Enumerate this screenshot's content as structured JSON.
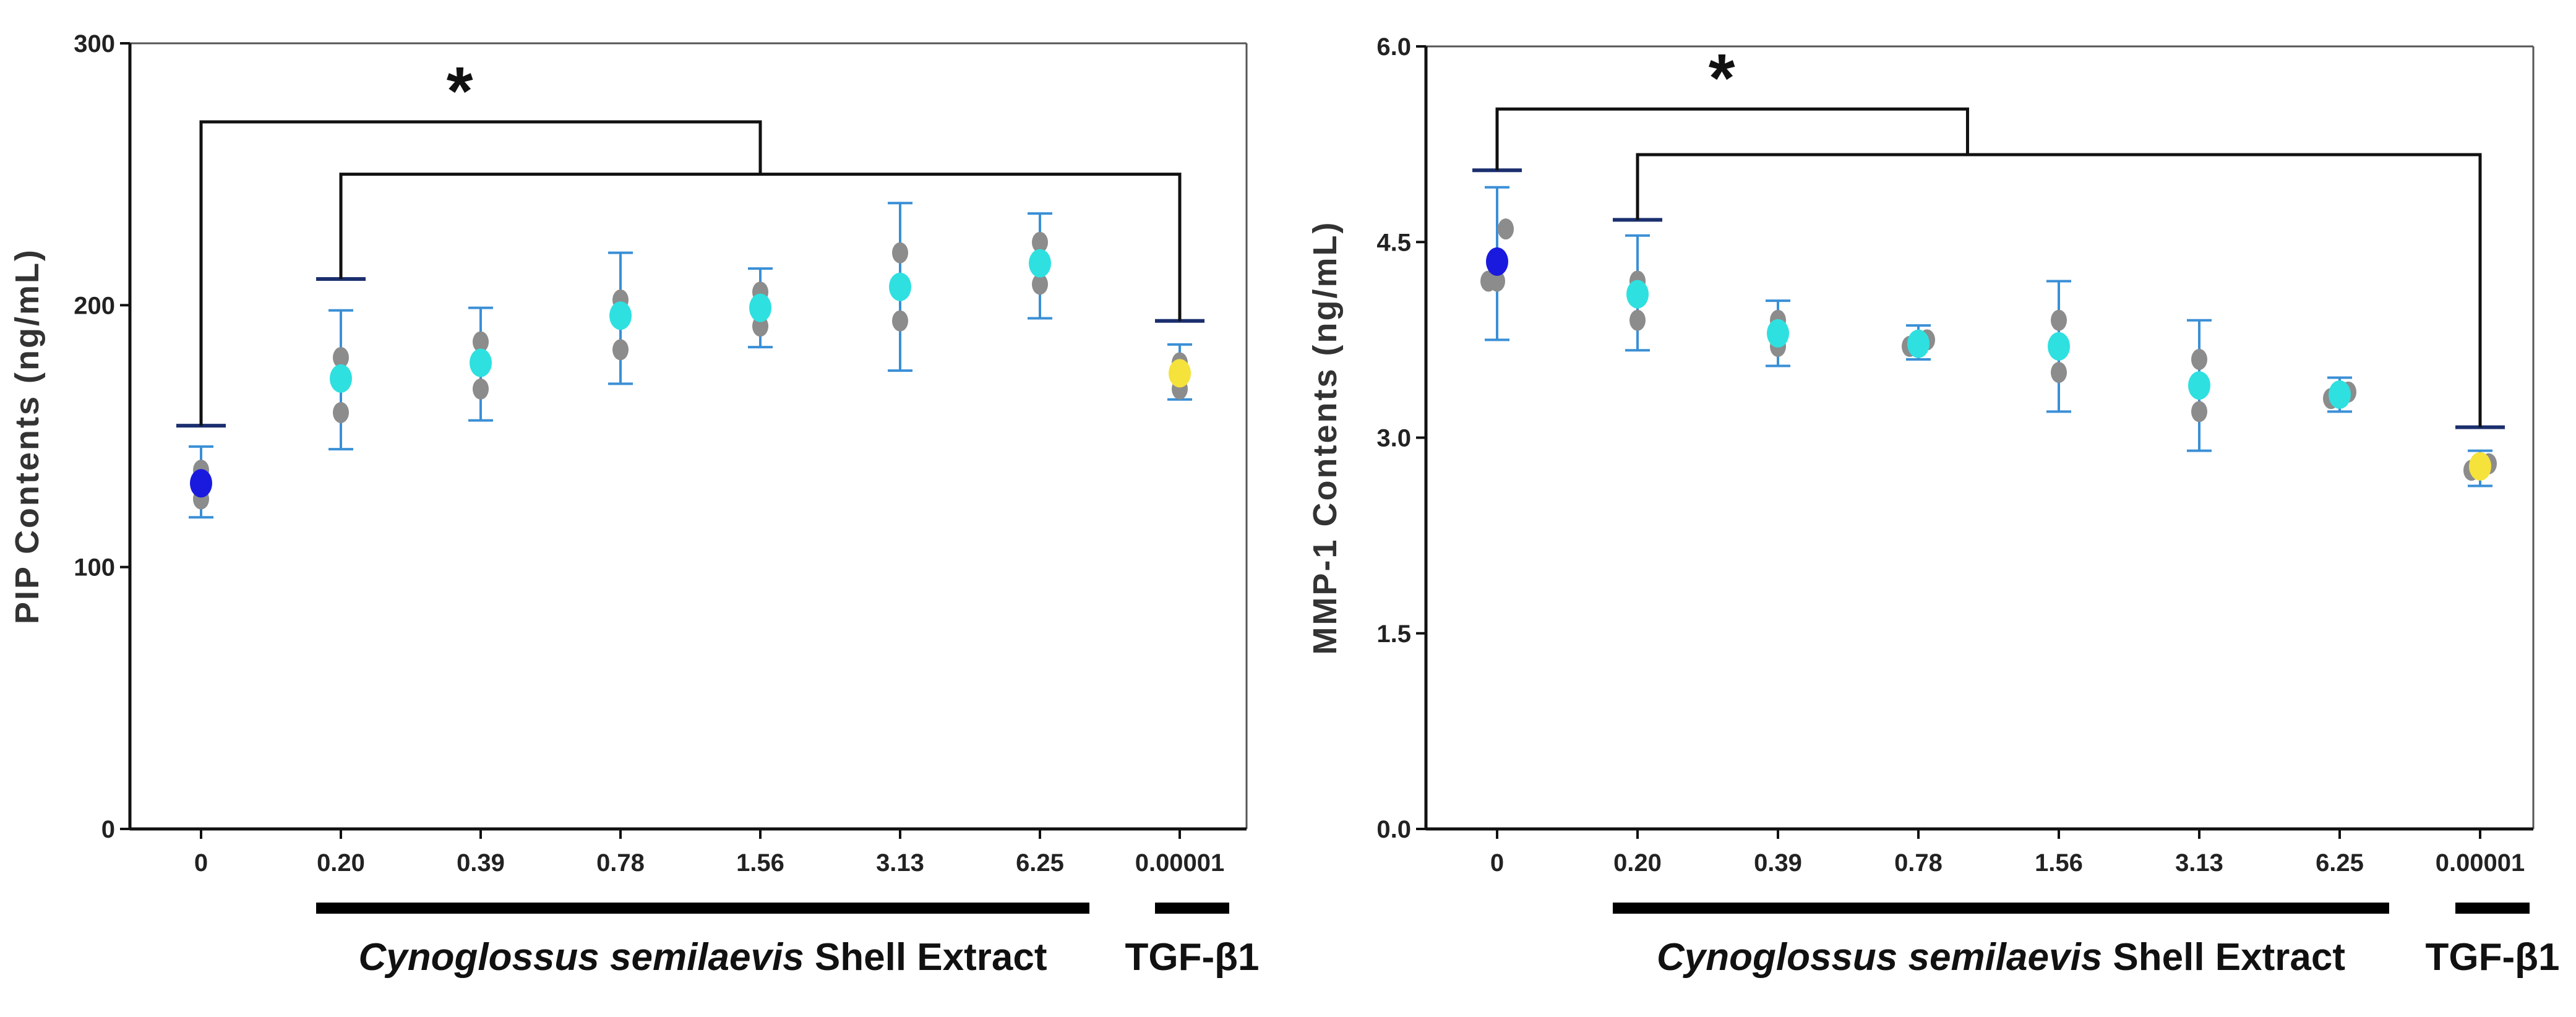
{
  "chart_data": [
    {
      "type": "scatter",
      "ylabel": "PIP Contents (ng/mL)",
      "ylim": [
        0,
        300
      ],
      "yticks": [
        "0",
        "100",
        "200",
        "300"
      ],
      "categories": [
        "0",
        "0.20",
        "0.39",
        "0.78",
        "1.56",
        "3.13",
        "6.25",
        "0.00001"
      ],
      "groups": [
        {
          "label_italic": "Cynoglossus semilaevis",
          "label_rest": " Shell Extract",
          "from": 1,
          "to": 6
        },
        {
          "label_italic": "",
          "label_rest": "TGF-β1",
          "from": 7,
          "to": 7
        }
      ],
      "means": [
        132,
        172,
        178,
        196,
        199,
        207,
        216,
        174
      ],
      "err_low": [
        119,
        145,
        156,
        170,
        184,
        175,
        195,
        164
      ],
      "err_high": [
        146,
        198,
        199,
        220,
        214,
        239,
        235,
        185
      ],
      "replicates": [
        [
          126,
          131,
          137
        ],
        [
          159,
          172,
          180
        ],
        [
          168,
          178,
          186
        ],
        [
          183,
          196,
          202
        ],
        [
          192,
          199,
          205
        ],
        [
          194,
          207,
          220
        ],
        [
          208,
          216,
          224
        ],
        [
          168,
          174,
          178
        ]
      ],
      "point_colors": [
        "#1a1adf",
        "#2fe0e0",
        "#2fe0e0",
        "#2fe0e0",
        "#2fe0e0",
        "#2fe0e0",
        "#2fe0e0",
        "#f5e23a"
      ],
      "significance": {
        "marker": "*",
        "control_index": 0,
        "control_cap": 154,
        "treated_cap_left": 210,
        "treated_cap_right": 194,
        "upper_line": 270,
        "lower_line": 250
      }
    },
    {
      "type": "scatter",
      "ylabel": "MMP-1 Contents (ng/mL)",
      "ylim": [
        0,
        6
      ],
      "yticks": [
        "0.0",
        "1.5",
        "3.0",
        "4.5",
        "6.0"
      ],
      "categories": [
        "0",
        "0.20",
        "0.39",
        "0.78",
        "1.56",
        "3.13",
        "6.25",
        "0.00001"
      ],
      "groups": [
        {
          "label_italic": "Cynoglossus semilaevis",
          "label_rest": " Shell Extract",
          "from": 1,
          "to": 6
        },
        {
          "label_italic": "",
          "label_rest": "TGF-β1",
          "from": 7,
          "to": 7
        }
      ],
      "means": [
        4.35,
        4.1,
        3.8,
        3.72,
        3.7,
        3.4,
        3.33,
        2.78
      ],
      "err_low": [
        3.75,
        3.67,
        3.55,
        3.6,
        3.2,
        2.9,
        3.2,
        2.63
      ],
      "err_high": [
        4.92,
        4.55,
        4.05,
        3.86,
        4.2,
        3.9,
        3.46,
        2.9
      ],
      "replicates": [
        [
          4.2,
          4.2,
          4.6
        ],
        [
          3.9,
          4.2,
          4.2
        ],
        [
          3.7,
          3.8,
          3.9
        ],
        [
          3.7,
          3.7,
          3.75
        ],
        [
          3.5,
          3.7,
          3.9
        ],
        [
          3.2,
          3.4,
          3.6
        ],
        [
          3.3,
          3.33,
          3.35
        ],
        [
          2.75,
          2.8,
          2.8
        ]
      ],
      "point_colors": [
        "#1a1adf",
        "#2fe0e0",
        "#2fe0e0",
        "#2fe0e0",
        "#2fe0e0",
        "#2fe0e0",
        "#2fe0e0",
        "#f5e23a"
      ],
      "significance": {
        "marker": "*",
        "control_index": 0,
        "control_cap": 5.05,
        "treated_cap_left": 4.67,
        "treated_cap_right": 3.08,
        "upper_line": 5.52,
        "lower_line": 5.17
      }
    }
  ],
  "colors": {
    "errorbar": "#3a8fd6",
    "replicate": "#8c8c8c",
    "cap": "#1b2f6e",
    "bracket": "#111111",
    "axis": "#111111"
  }
}
